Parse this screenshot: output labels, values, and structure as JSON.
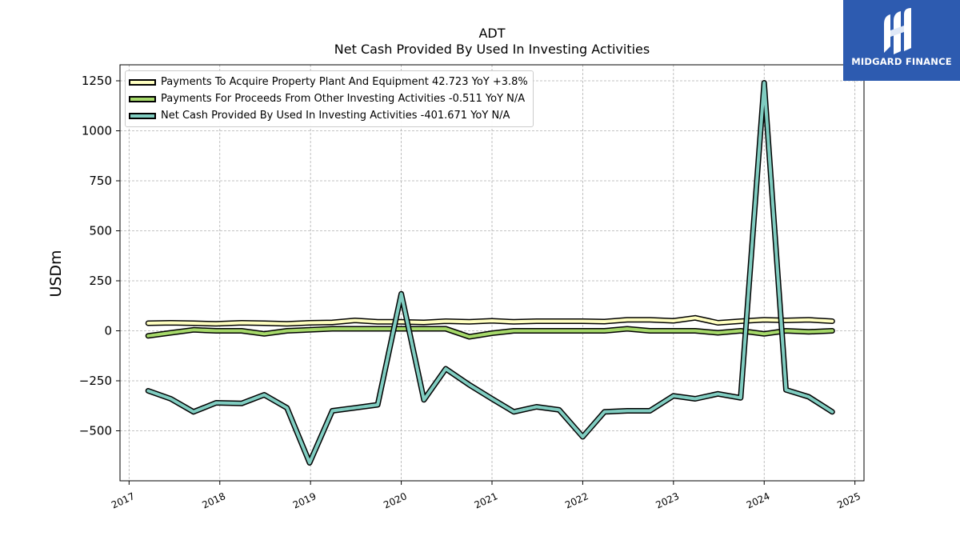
{
  "header": {
    "ticker": "ADT",
    "subtitle": "Net Cash Provided By Used In Investing Activities"
  },
  "logo": {
    "brand": "MIDGARD FINANCE",
    "icon": "midgard-m-logo-icon",
    "bg_color": "#2d5bb0"
  },
  "chart_data": {
    "type": "line",
    "title": "ADT",
    "subtitle": "Net Cash Provided By Used In Investing Activities",
    "xlabel": "",
    "ylabel": "USDm",
    "xlim": [
      2016.9,
      2025.1
    ],
    "ylim": [
      -750,
      1330
    ],
    "yticks": [
      -500,
      -250,
      0,
      250,
      500,
      750,
      1000,
      1250
    ],
    "ytick_labels": [
      "−500",
      "−250",
      "0",
      "250",
      "500",
      "750",
      "1000",
      "1250"
    ],
    "xticks": [
      2017,
      2018,
      2019,
      2020,
      2021,
      2022,
      2023,
      2024,
      2025
    ],
    "xtick_labels": [
      "2017",
      "2018",
      "2019",
      "2020",
      "2021",
      "2022",
      "2023",
      "2024",
      "2025"
    ],
    "grid": true,
    "legend_position": "top-left",
    "x": [
      2017.21,
      2017.46,
      2017.71,
      2017.96,
      2018.24,
      2018.49,
      2018.74,
      2018.99,
      2019.24,
      2019.49,
      2019.74,
      2020.0,
      2020.25,
      2020.49,
      2020.75,
      2021.0,
      2021.24,
      2021.49,
      2021.74,
      2022.0,
      2022.24,
      2022.49,
      2022.74,
      2023.0,
      2023.24,
      2023.49,
      2023.74,
      2024.0,
      2024.24,
      2024.49,
      2024.75
    ],
    "series": [
      {
        "name": "Payments To Acquire Property Plant And Equipment",
        "legend": "Payments To Acquire Property Plant And Equipment  42.723 YoY +3.8%",
        "color": "#ffffc0",
        "values": [
          38,
          40,
          38,
          35,
          40,
          38,
          35,
          40,
          42,
          52,
          45,
          45,
          42,
          48,
          45,
          50,
          45,
          48,
          48,
          48,
          46,
          55,
          55,
          50,
          65,
          40,
          48,
          55,
          52,
          55,
          48
        ]
      },
      {
        "name": "Payments For Proceeds From Other Investing Activities",
        "legend": "Payments For Proceeds From Other Investing Activities  -0.511 YoY N/A",
        "color": "#a6d96a",
        "values": [
          -25,
          -10,
          5,
          0,
          0,
          -15,
          0,
          5,
          10,
          10,
          10,
          10,
          10,
          10,
          -30,
          -12,
          0,
          0,
          0,
          0,
          0,
          10,
          0,
          0,
          0,
          -10,
          0,
          -15,
          0,
          -5,
          0
        ]
      },
      {
        "name": "Net Cash Provided By Used In Investing Activities",
        "legend": "Net Cash Provided By Used In Investing Activities  -401.671 YoY N/A",
        "color": "#80cdc1",
        "values": [
          -300,
          -340,
          -405,
          -360,
          -363,
          -320,
          -385,
          -660,
          -400,
          -385,
          -370,
          185,
          -345,
          -190,
          -270,
          -340,
          -405,
          -380,
          -395,
          -530,
          -405,
          -400,
          -400,
          -325,
          -340,
          -315,
          -335,
          1240,
          -295,
          -330,
          -405
        ]
      }
    ]
  }
}
